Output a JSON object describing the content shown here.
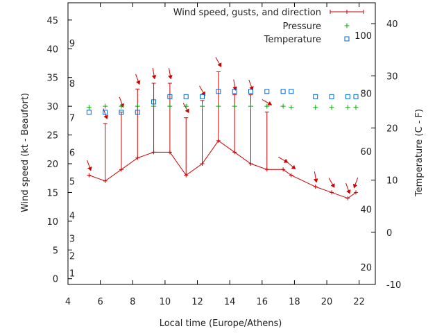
{
  "chart_data": {
    "type": "line",
    "xlabel": "Local time (Europe/Athens)",
    "ylabel_left": "Wind speed (kt - Beaufort)",
    "ylabel_right": "Temperature (C - F)",
    "x_range": [
      4,
      23
    ],
    "x_ticks": [
      4,
      6,
      8,
      10,
      12,
      14,
      16,
      18,
      20,
      22
    ],
    "y_left_range": [
      -1,
      48
    ],
    "y_left_ticks": [
      0,
      5,
      10,
      15,
      20,
      25,
      30,
      35,
      40,
      45
    ],
    "y_right_range": [
      -10,
      44
    ],
    "y_right_ticks": [
      -10,
      0,
      10,
      20,
      30,
      40
    ],
    "fahrenheit_ticks": [
      {
        "label": "20",
        "celsius": -6.67
      },
      {
        "label": "40",
        "celsius": 4.44
      },
      {
        "label": "60",
        "celsius": 15.56
      },
      {
        "label": "80",
        "celsius": 26.67
      },
      {
        "label": "100",
        "celsius": 37.78
      }
    ],
    "beaufort_ticks": [
      {
        "label": "1",
        "kt": 1
      },
      {
        "label": "2",
        "kt": 4
      },
      {
        "label": "3",
        "kt": 7
      },
      {
        "label": "4",
        "kt": 11
      },
      {
        "label": "5",
        "kt": 17
      },
      {
        "label": "6",
        "kt": 22
      },
      {
        "label": "7",
        "kt": 28
      },
      {
        "label": "8",
        "kt": 34
      },
      {
        "label": "9",
        "kt": 41
      }
    ],
    "legend": [
      {
        "label": "Wind speed, gusts, and direction",
        "color": "#cc0000",
        "marker": "line-plus"
      },
      {
        "label": "Pressure",
        "color": "#00aa00",
        "marker": "plus"
      },
      {
        "label": "Temperature",
        "color": "#0066cc",
        "marker": "square"
      }
    ],
    "series": {
      "wind": {
        "x": [
          5.3,
          6.3,
          7.3,
          8.3,
          9.3,
          10.3,
          11.3,
          12.3,
          13.3,
          14.3,
          15.3,
          16.3,
          17.3,
          17.8,
          19.3,
          20.3,
          21.3,
          21.8
        ],
        "speed": [
          18,
          17,
          19,
          21,
          22,
          22,
          18,
          20,
          24,
          22,
          20,
          19,
          19,
          18,
          16,
          15,
          14,
          15
        ],
        "gust": [
          null,
          27,
          29,
          33,
          34,
          34,
          28,
          31,
          36,
          32,
          32,
          29,
          null,
          null,
          null,
          null,
          null,
          null
        ],
        "direction_deg": [
          340,
          340,
          340,
          340,
          350,
          350,
          330,
          330,
          330,
          350,
          340,
          300,
          300,
          310,
          350,
          330,
          340,
          20
        ]
      },
      "pressure": {
        "x": [
          5.3,
          6.3,
          7.3,
          8.3,
          9.3,
          10.3,
          11.3,
          12.3,
          13.3,
          14.3,
          15.3,
          16.3,
          17.3,
          17.8,
          19.3,
          20.3,
          21.3,
          21.8
        ],
        "y": [
          29.8,
          30,
          30,
          30,
          30,
          30,
          30,
          30,
          30,
          30,
          30,
          30,
          30,
          29.8,
          29.8,
          29.8,
          29.8,
          29.8
        ]
      },
      "temperature": {
        "x": [
          5.3,
          6.3,
          7.3,
          8.3,
          9.3,
          10.3,
          11.3,
          12.3,
          13.3,
          14.3,
          15.3,
          16.3,
          17.3,
          17.8,
          19.3,
          20.3,
          21.3,
          21.8
        ],
        "y_celsius": [
          23,
          23,
          23,
          23,
          25,
          26,
          26,
          26,
          27,
          27,
          27,
          27,
          27,
          27,
          26,
          26,
          26,
          26
        ]
      }
    },
    "grid": false,
    "legend_position": "top-right"
  }
}
